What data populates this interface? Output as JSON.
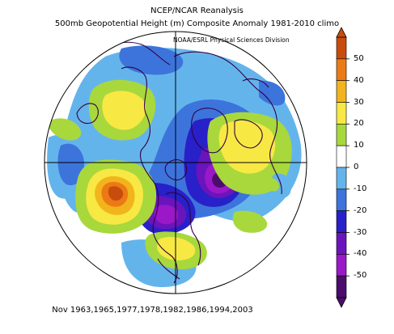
{
  "header": {
    "title_line1": "NCEP/NCAR Reanalysis",
    "title_line2": "500mb Geopotential Height (m) Composite Anomaly 1981-2010 climo",
    "credit": "NOAA/ESRL Physical Sciences Division"
  },
  "footer": {
    "caption": "Nov 1963,1965,1977,1978,1982,1986,1994,2003"
  },
  "map": {
    "projection": "polar-stereographic",
    "hemisphere": "northern",
    "anomalies": [
      {
        "region": "central-north-pacific",
        "value": 45
      },
      {
        "region": "hudson-bay-canada",
        "value": -45
      },
      {
        "region": "north-atlantic-greenland",
        "value": -45
      },
      {
        "region": "scandinavia-northwest-russia",
        "value": 25
      },
      {
        "region": "alaska-bering-sea",
        "value": 15
      },
      {
        "region": "east-siberia",
        "value": -25
      },
      {
        "region": "southeast-united-states",
        "value": 15
      },
      {
        "region": "north-of-hawaii",
        "value": -30
      }
    ]
  },
  "colorbar": {
    "ticks": [
      "50",
      "40",
      "30",
      "20",
      "10",
      "0",
      "-10",
      "-20",
      "-30",
      "-40",
      "-50"
    ],
    "colors": [
      "#c84c0c",
      "#ec7a14",
      "#f2b41c",
      "#f8e844",
      "#a8d83c",
      "#ffffff",
      "#64b4ec",
      "#3c74dc",
      "#2820c8",
      "#6a14bc",
      "#9a18c8",
      "#4c0c6c"
    ]
  }
}
